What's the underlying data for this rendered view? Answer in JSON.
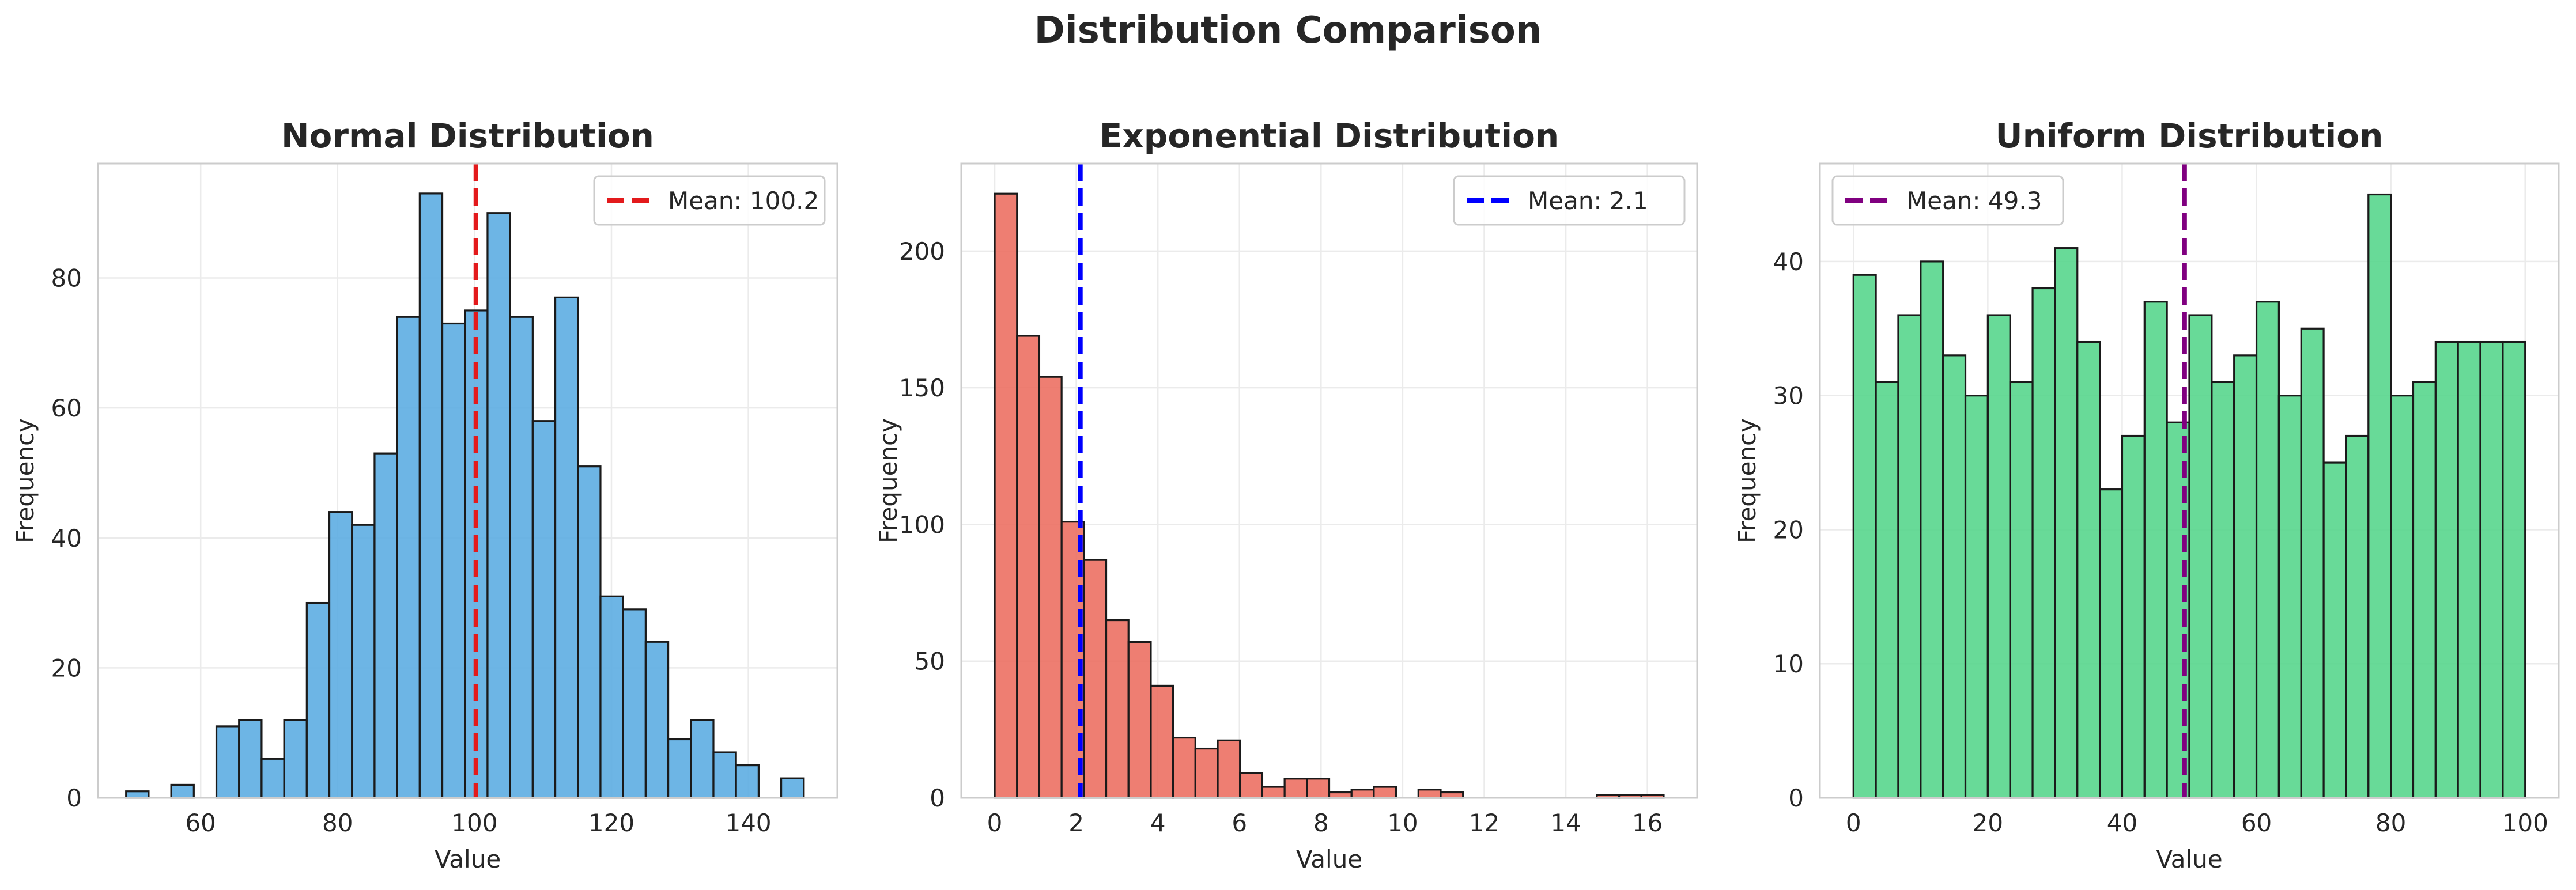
{
  "figure": {
    "title": "Distribution Comparison"
  },
  "chart_data": [
    {
      "type": "bar",
      "title": "Normal Distribution",
      "xlabel": "Value",
      "ylabel": "Frequency",
      "bin_edges": [
        49.1,
        52.4,
        55.7,
        59.0,
        62.3,
        65.6,
        68.9,
        72.2,
        75.5,
        78.8,
        82.1,
        85.4,
        88.7,
        92.0,
        95.3,
        98.6,
        101.9,
        105.2,
        108.5,
        111.8,
        115.1,
        118.4,
        121.7,
        125.0,
        128.3,
        131.6,
        134.9,
        138.2,
        141.5,
        144.8,
        148.1
      ],
      "values": [
        1,
        0,
        2,
        0,
        11,
        12,
        6,
        12,
        30,
        44,
        42,
        53,
        74,
        93,
        73,
        75,
        90,
        74,
        58,
        77,
        51,
        31,
        29,
        24,
        9,
        12,
        7,
        5,
        0,
        3
      ],
      "xlim": [
        45,
        153
      ],
      "ylim": [
        0,
        97.6
      ],
      "xticks": [
        60,
        80,
        100,
        120,
        140
      ],
      "yticks": [
        0,
        20,
        40,
        60,
        80
      ],
      "mean": 100.2,
      "mean_color": "#e31a1c",
      "legend_label": "Mean: 100.2",
      "legend_position": "upper right",
      "bar_color": "#5dade2"
    },
    {
      "type": "bar",
      "title": "Exponential Distribution",
      "xlabel": "Value",
      "ylabel": "Frequency",
      "bin_edges": [
        0,
        0.547,
        1.093,
        1.64,
        2.187,
        2.733,
        3.28,
        3.827,
        4.373,
        4.92,
        5.467,
        6.013,
        6.56,
        7.107,
        7.653,
        8.2,
        8.747,
        9.293,
        9.84,
        10.387,
        10.933,
        11.48,
        12.027,
        12.573,
        13.12,
        13.667,
        14.213,
        14.76,
        15.307,
        15.853,
        16.4
      ],
      "values": [
        221,
        169,
        154,
        101,
        87,
        65,
        57,
        41,
        22,
        18,
        21,
        9,
        4,
        7,
        7,
        2,
        3,
        4,
        0,
        3,
        2,
        0,
        0,
        0,
        0,
        0,
        0,
        1,
        1,
        1
      ],
      "xlim": [
        -0.82,
        17.22
      ],
      "ylim": [
        0,
        232
      ],
      "xticks": [
        0,
        2,
        4,
        6,
        8,
        10,
        12,
        14,
        16
      ],
      "yticks": [
        0,
        50,
        100,
        150,
        200
      ],
      "mean": 2.1,
      "mean_color": "#0000ff",
      "legend_label": "Mean: 2.1",
      "legend_position": "upper right",
      "bar_color": "#ec7063"
    },
    {
      "type": "bar",
      "title": "Uniform Distribution",
      "xlabel": "Value",
      "ylabel": "Frequency",
      "bin_edges": [
        0,
        3.333,
        6.667,
        10,
        13.333,
        16.667,
        20,
        23.333,
        26.667,
        30,
        33.333,
        36.667,
        40,
        43.333,
        46.667,
        50,
        53.333,
        56.667,
        60,
        63.333,
        66.667,
        70,
        73.333,
        76.667,
        80,
        83.333,
        86.667,
        90,
        93.333,
        96.667,
        100
      ],
      "values": [
        39,
        31,
        36,
        40,
        33,
        30,
        36,
        31,
        38,
        41,
        34,
        23,
        27,
        37,
        28,
        36,
        31,
        33,
        37,
        30,
        35,
        25,
        27,
        45,
        30,
        31,
        34,
        34,
        34,
        34
      ],
      "xlim": [
        -5,
        105
      ],
      "ylim": [
        0,
        47.3
      ],
      "xticks": [
        0,
        20,
        40,
        60,
        80,
        100
      ],
      "yticks": [
        0,
        10,
        20,
        30,
        40
      ],
      "mean": 49.3,
      "mean_color": "#800080",
      "legend_label": "Mean: 49.3",
      "legend_position": "upper left",
      "bar_color": "#58d68d"
    }
  ]
}
